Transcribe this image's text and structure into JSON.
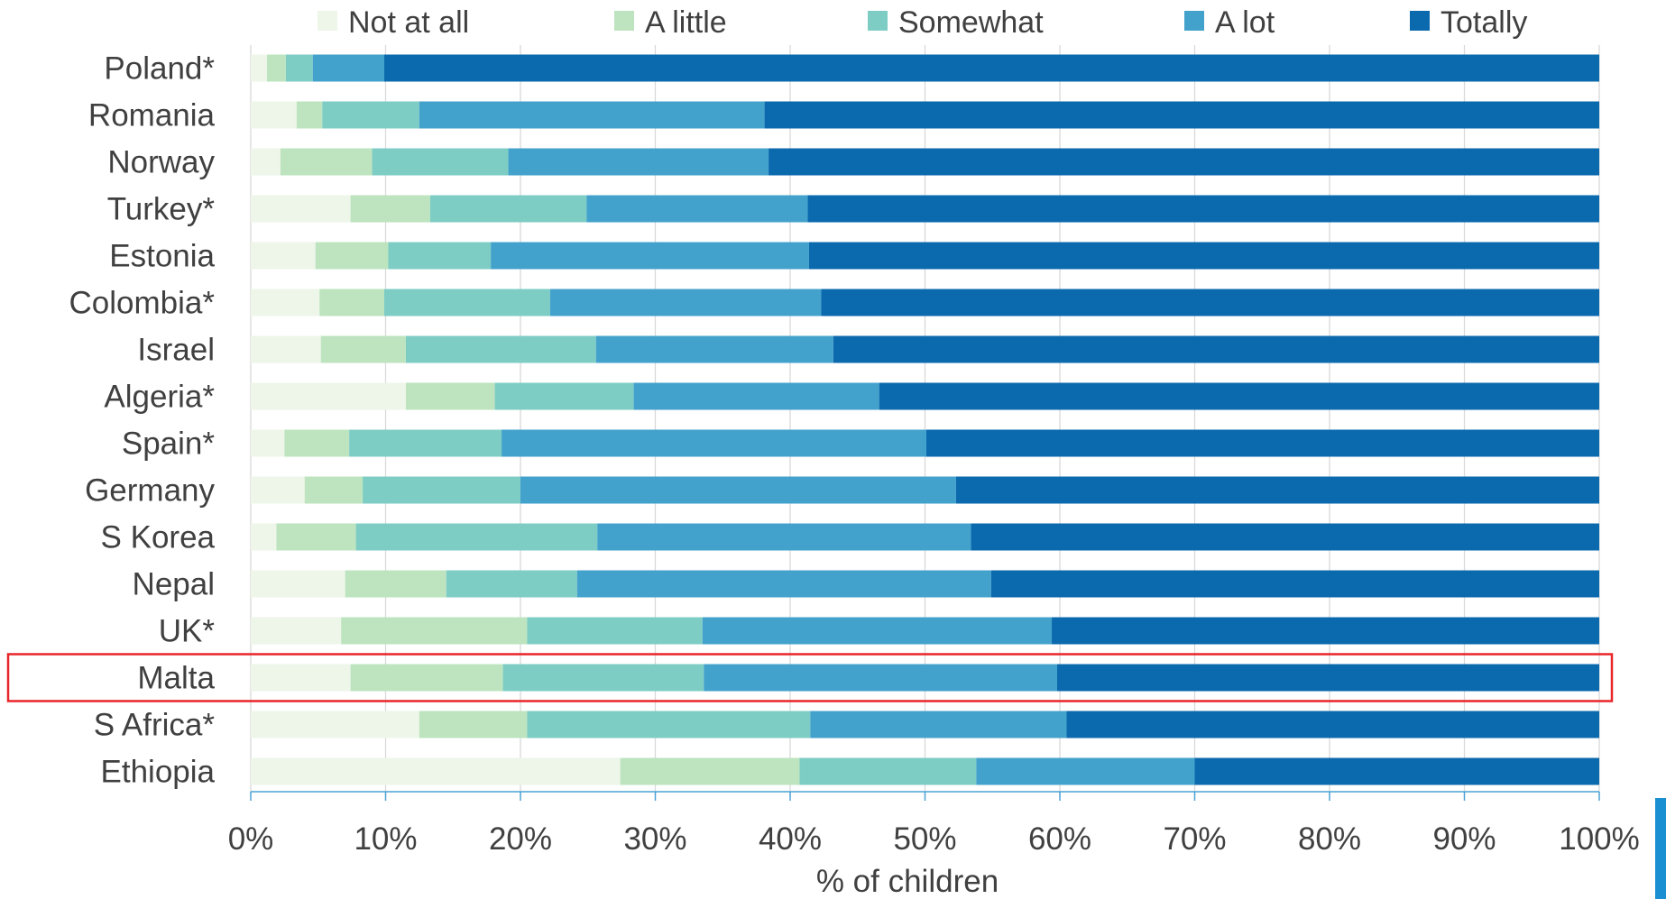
{
  "chart_data": {
    "type": "bar",
    "orientation": "horizontal",
    "stacked": "percent",
    "categories": [
      "Poland*",
      "Romania",
      "Norway",
      "Turkey*",
      "Estonia",
      "Colombia*",
      "Israel",
      "Algeria*",
      "Spain*",
      "Germany",
      "S Korea",
      "Nepal",
      "UK*",
      "Malta",
      "S Africa*",
      "Ethiopia"
    ],
    "series": [
      {
        "name": "Not at all",
        "color": "#edf6e8",
        "values": [
          1.2,
          3.4,
          2.2,
          7.4,
          4.8,
          5.1,
          5.2,
          11.5,
          2.5,
          4.0,
          1.9,
          7.0,
          6.7,
          7.4,
          12.5,
          27.4
        ]
      },
      {
        "name": "A little",
        "color": "#bde4bf",
        "values": [
          1.4,
          1.9,
          6.8,
          5.9,
          5.4,
          4.8,
          6.3,
          6.6,
          4.8,
          4.3,
          5.9,
          7.5,
          13.8,
          11.3,
          8.0,
          13.3
        ]
      },
      {
        "name": "Somewhat",
        "color": "#7ecdc5",
        "values": [
          2.0,
          7.2,
          10.1,
          11.6,
          7.6,
          12.3,
          14.1,
          10.3,
          11.3,
          11.7,
          17.9,
          9.7,
          13.0,
          14.9,
          21.0,
          13.1
        ]
      },
      {
        "name": "A lot",
        "color": "#43a2cc",
        "values": [
          5.3,
          25.6,
          19.3,
          16.4,
          23.6,
          20.1,
          17.6,
          18.2,
          31.5,
          32.3,
          27.7,
          30.7,
          25.9,
          26.2,
          19.0,
          16.2
        ]
      },
      {
        "name": "Totally",
        "color": "#0b69ae",
        "values": [
          90.1,
          61.9,
          61.6,
          58.7,
          58.6,
          57.7,
          56.8,
          53.4,
          49.9,
          47.7,
          46.6,
          45.1,
          40.6,
          40.2,
          39.5,
          30.0
        ]
      }
    ],
    "xlim": [
      0,
      100
    ],
    "xticks": [
      "0%",
      "10%",
      "20%",
      "30%",
      "40%",
      "50%",
      "60%",
      "70%",
      "80%",
      "90%",
      "100%"
    ],
    "xlabel": "% of children",
    "ylabel": "",
    "title": "",
    "grid": true,
    "legend_position": "top",
    "highlighted_category": "Malta",
    "highlight_color": "#e8262a"
  }
}
